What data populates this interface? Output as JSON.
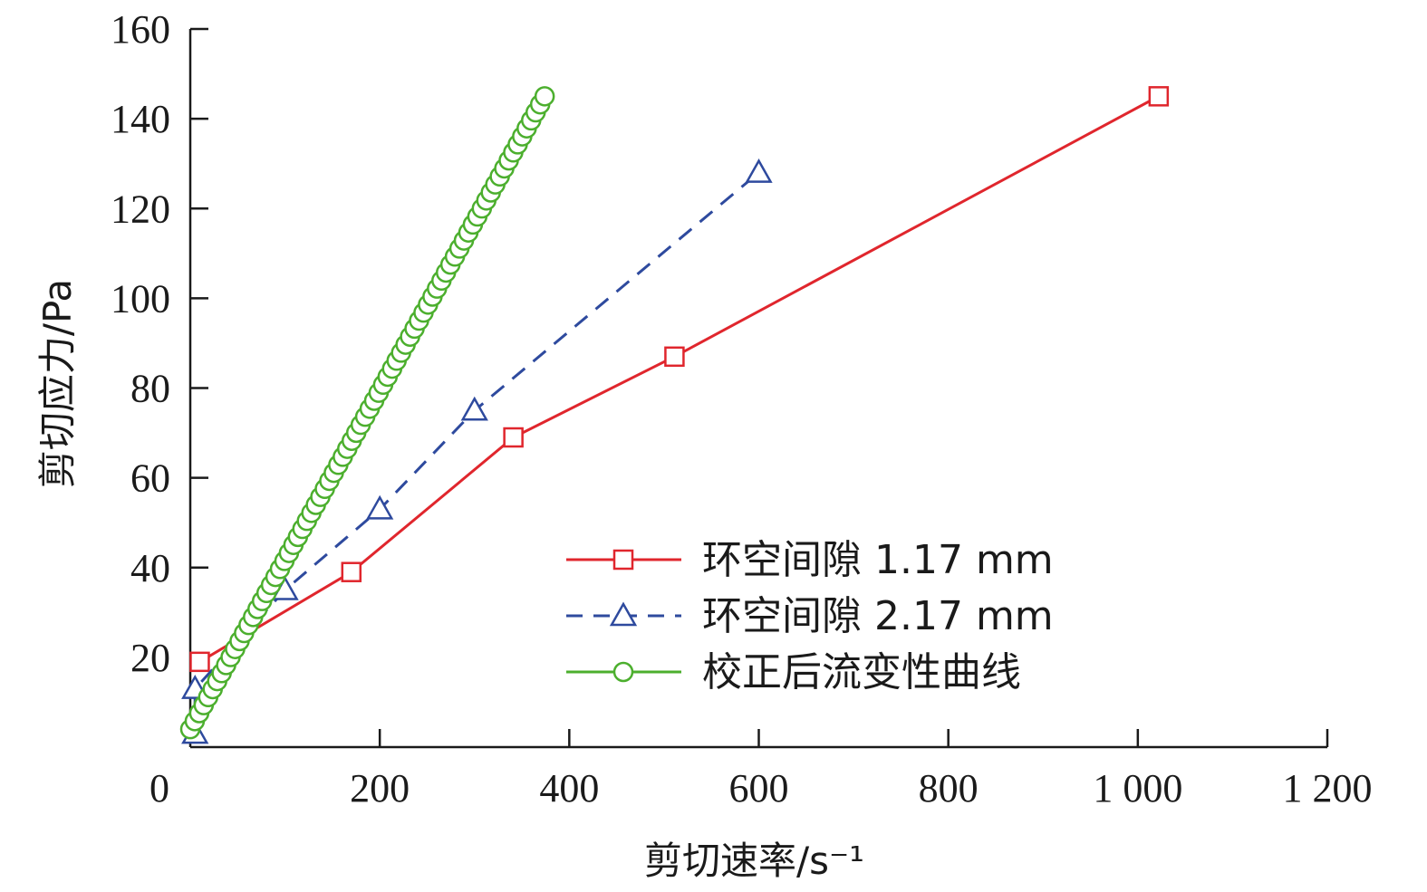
{
  "chart_data": {
    "type": "line",
    "xlabel": "剪切速率/s⁻¹",
    "ylabel": "剪切应力/Pa",
    "xlim": [
      0,
      1200
    ],
    "ylim": [
      0,
      160
    ],
    "x_ticks": [
      {
        "value": 0,
        "label": "0"
      },
      {
        "value": 200,
        "label": "200"
      },
      {
        "value": 400,
        "label": "400"
      },
      {
        "value": 600,
        "label": "600"
      },
      {
        "value": 800,
        "label": "800"
      },
      {
        "value": 1000,
        "label": "1 000"
      },
      {
        "value": 1200,
        "label": "1 200"
      }
    ],
    "y_ticks": [
      {
        "value": 20,
        "label": "20"
      },
      {
        "value": 40,
        "label": "40"
      },
      {
        "value": 60,
        "label": "60"
      },
      {
        "value": 80,
        "label": "80"
      },
      {
        "value": 100,
        "label": "100"
      },
      {
        "value": 120,
        "label": "120"
      },
      {
        "value": 140,
        "label": "140"
      },
      {
        "value": 160,
        "label": "160"
      }
    ],
    "grid": false,
    "legend_position": "bottom-right",
    "series": [
      {
        "name": "环空间隙 1.17 mm",
        "color": "#e0262d",
        "line_style": "solid",
        "marker": "square",
        "points": [
          [
            10,
            19
          ],
          [
            170,
            39
          ],
          [
            341,
            69
          ],
          [
            511,
            87
          ],
          [
            1022,
            145
          ]
        ]
      },
      {
        "name": "环空间隙 2.17 mm",
        "color": "#2e4a9e",
        "line_style": "dashed",
        "marker": "triangle",
        "points": [
          [
            5,
            3
          ],
          [
            5,
            13
          ],
          [
            100,
            35
          ],
          [
            200,
            53
          ],
          [
            300,
            75
          ],
          [
            600,
            128
          ]
        ]
      },
      {
        "name": "校正后流变性曲线",
        "color": "#4caf2e",
        "line_style": "solid",
        "marker": "circle",
        "x_start": 0,
        "x_end": 374,
        "y_start": 4,
        "y_end": 145,
        "n_points": 80
      }
    ]
  }
}
